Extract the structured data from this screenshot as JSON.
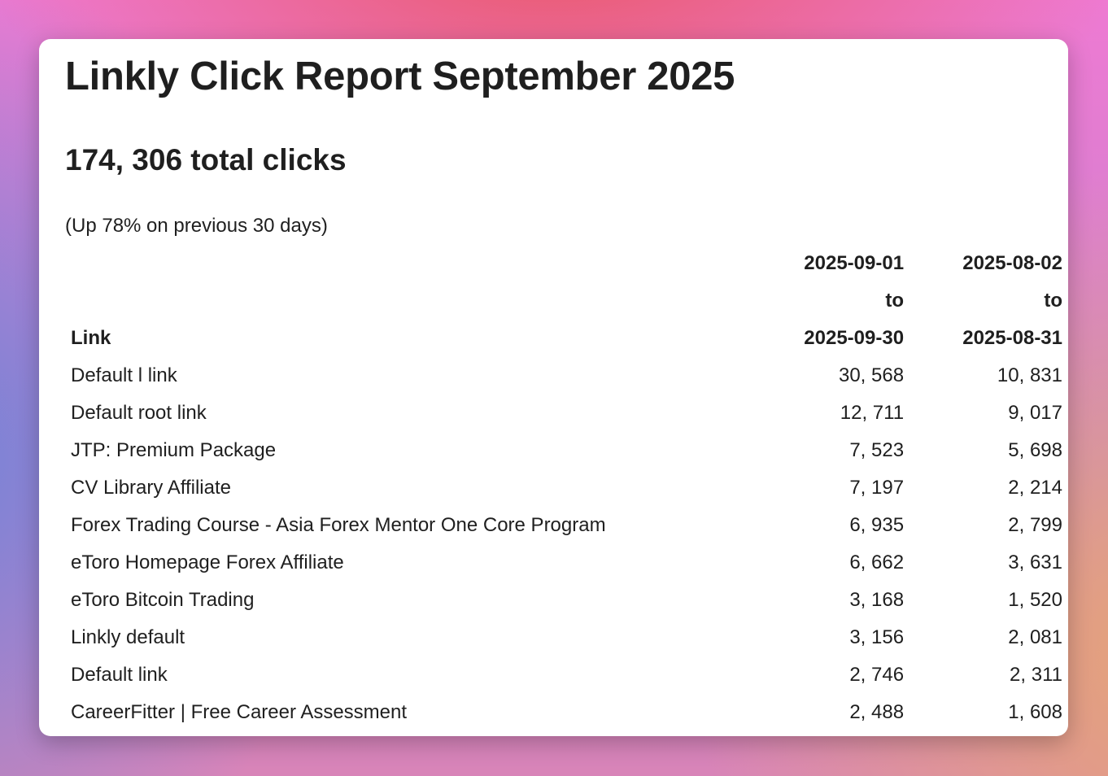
{
  "title": "Linkly Click Report September 2025",
  "total_clicks": "174, 306 total clicks",
  "change_note": "(Up 78% on previous 30 days)",
  "table": {
    "headers": {
      "link": "Link",
      "period1": {
        "start": "2025-09-01",
        "to": "to",
        "end": "2025-09-30"
      },
      "period2": {
        "start": "2025-08-02",
        "to": "to",
        "end": "2025-08-31"
      }
    },
    "rows": [
      {
        "link": "Default l link",
        "current": "30, 568",
        "previous": "10, 831"
      },
      {
        "link": "Default root link",
        "current": "12, 711",
        "previous": "9, 017"
      },
      {
        "link": "JTP: Premium Package",
        "current": "7, 523",
        "previous": "5, 698"
      },
      {
        "link": "CV Library Affiliate",
        "current": "7, 197",
        "previous": "2, 214"
      },
      {
        "link": "Forex Trading Course - Asia Forex Mentor One Core Program",
        "current": "6, 935",
        "previous": "2, 799"
      },
      {
        "link": "eToro Homepage Forex Affiliate",
        "current": "6, 662",
        "previous": "3, 631"
      },
      {
        "link": "eToro Bitcoin Trading",
        "current": "3, 168",
        "previous": "1, 520"
      },
      {
        "link": "Linkly default",
        "current": "3, 156",
        "previous": "2, 081"
      },
      {
        "link": "Default link",
        "current": "2, 746",
        "previous": "2, 311"
      },
      {
        "link": "CareerFitter | Free Career Assessment",
        "current": "2, 488",
        "previous": "1, 608"
      }
    ]
  }
}
